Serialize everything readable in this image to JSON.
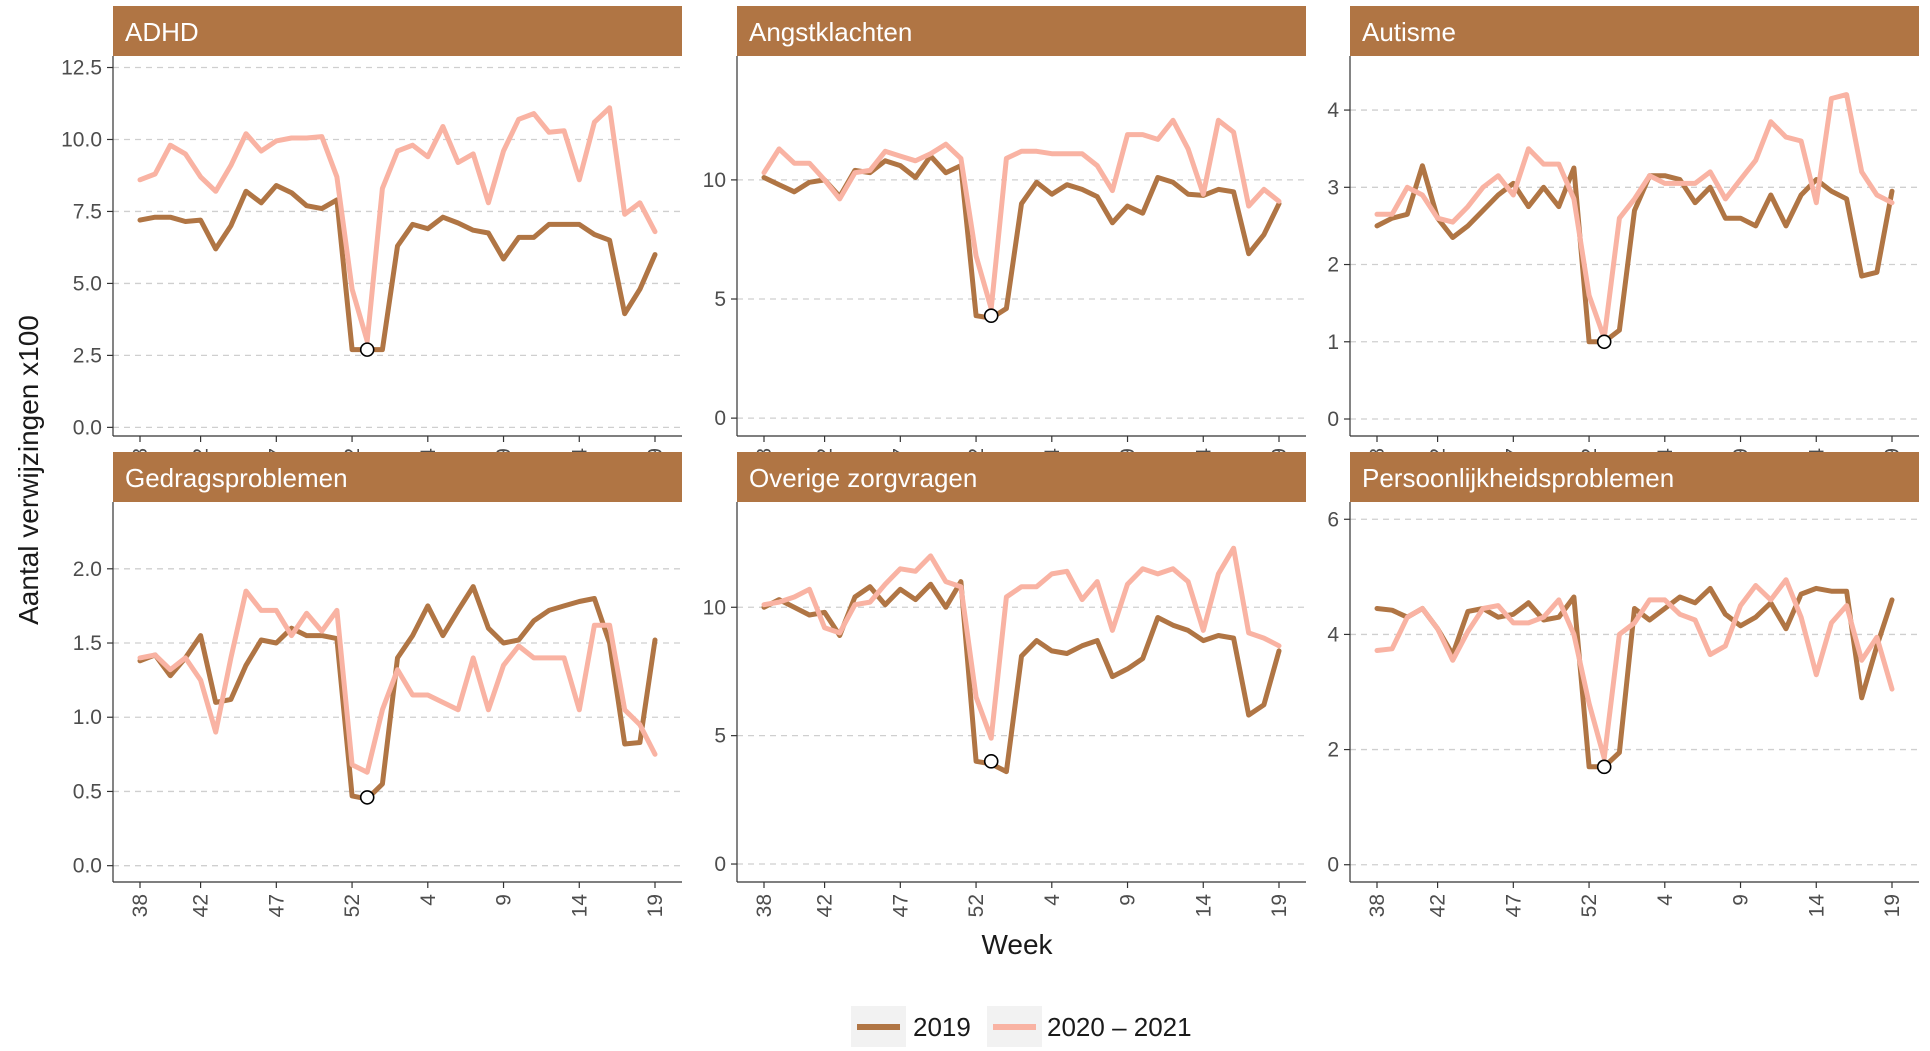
{
  "chart_data": {
    "type": "line",
    "xlabel": "Week",
    "ylabel": "Aantal verwijzingen x100",
    "x_tick_labels": [
      "38",
      "42",
      "47",
      "52",
      "4",
      "9",
      "14",
      "19"
    ],
    "x_tick_indices": [
      0,
      4,
      9,
      14,
      19,
      24,
      29,
      34
    ],
    "x_weeks": [
      "38",
      "39",
      "40",
      "41",
      "42",
      "43",
      "44",
      "45",
      "46",
      "47",
      "48",
      "49",
      "50",
      "51",
      "52",
      "53",
      "1",
      "2",
      "3",
      "4",
      "5",
      "6",
      "7",
      "8",
      "9",
      "10",
      "11",
      "12",
      "13",
      "14",
      "15",
      "16",
      "17",
      "18",
      "19"
    ],
    "grid": "horizontal-dashed",
    "legend_position": "bottom",
    "legend": [
      {
        "label": "2019",
        "color": "#b07544"
      },
      {
        "label": "2020 – 2021",
        "color": "#f9b3a3"
      }
    ],
    "facets": [
      {
        "title": "ADHD",
        "ylim": [
          -0.3,
          12.9
        ],
        "y_ticks": [
          0,
          2.5,
          5,
          7.5,
          10,
          12.5
        ],
        "y_tick_labels": [
          "0.0",
          "2.5",
          "5.0",
          "7.5",
          "10.0",
          "12.5"
        ],
        "marker": {
          "x_index": 15,
          "y": 2.7
        },
        "series": [
          {
            "values": [
              7.2,
              7.3,
              7.3,
              7.15,
              7.2,
              6.2,
              7.0,
              8.2,
              7.8,
              8.4,
              8.15,
              7.7,
              7.6,
              7.9,
              2.7,
              2.7,
              2.7,
              6.3,
              7.05,
              6.9,
              7.3,
              7.1,
              6.85,
              6.75,
              5.85,
              6.6,
              6.6,
              7.05,
              7.05,
              7.05,
              6.7,
              6.5,
              3.95,
              4.8,
              6.0
            ]
          },
          {
            "values": [
              8.6,
              8.8,
              9.8,
              9.5,
              8.7,
              8.2,
              9.1,
              10.2,
              9.6,
              9.95,
              10.05,
              10.05,
              10.1,
              8.7,
              4.8,
              3.0,
              8.3,
              9.6,
              9.8,
              9.4,
              10.45,
              9.2,
              9.5,
              7.8,
              9.6,
              10.7,
              10.9,
              10.25,
              10.3,
              8.6,
              10.6,
              11.1,
              7.4,
              7.8,
              6.8
            ]
          }
        ]
      },
      {
        "title": "Angstklachten",
        "ylim": [
          -0.75,
          15.2
        ],
        "y_ticks": [
          0,
          5,
          10
        ],
        "y_tick_labels": [
          "0",
          "5",
          "10"
        ],
        "marker": {
          "x_index": 15,
          "y": 4.3
        },
        "series": [
          {
            "values": [
              10.1,
              9.8,
              9.5,
              9.9,
              10.0,
              9.3,
              10.4,
              10.3,
              10.8,
              10.6,
              10.1,
              11.0,
              10.3,
              10.6,
              4.3,
              4.2,
              4.6,
              9.0,
              9.9,
              9.4,
              9.8,
              9.6,
              9.3,
              8.2,
              8.9,
              8.6,
              10.1,
              9.9,
              9.4,
              9.35,
              9.6,
              9.5,
              6.9,
              7.7,
              9.0
            ]
          },
          {
            "values": [
              10.3,
              11.3,
              10.7,
              10.7,
              10.0,
              9.2,
              10.3,
              10.4,
              11.2,
              11.0,
              10.8,
              11.1,
              11.5,
              10.9,
              6.8,
              4.6,
              10.9,
              11.2,
              11.2,
              11.1,
              11.1,
              11.1,
              10.6,
              9.55,
              11.9,
              11.9,
              11.7,
              12.5,
              11.3,
              9.4,
              12.5,
              12.0,
              8.9,
              9.6,
              9.1
            ]
          }
        ]
      },
      {
        "title": "Autisme",
        "ylim": [
          -0.22,
          4.7
        ],
        "y_ticks": [
          0,
          1,
          2,
          3,
          4
        ],
        "y_tick_labels": [
          "0",
          "1",
          "2",
          "3",
          "4"
        ],
        "marker": {
          "x_index": 15,
          "y": 1.0
        },
        "series": [
          {
            "values": [
              2.5,
              2.6,
              2.65,
              3.28,
              2.6,
              2.35,
              2.5,
              2.7,
              2.9,
              3.05,
              2.75,
              3.0,
              2.75,
              3.25,
              1.0,
              1.0,
              1.15,
              2.7,
              3.15,
              3.15,
              3.1,
              2.8,
              3.0,
              2.6,
              2.6,
              2.5,
              2.9,
              2.5,
              2.9,
              3.1,
              2.95,
              2.85,
              1.85,
              1.9,
              2.95
            ]
          },
          {
            "values": [
              2.65,
              2.65,
              3.0,
              2.9,
              2.6,
              2.55,
              2.75,
              3.0,
              3.15,
              2.9,
              3.5,
              3.3,
              3.3,
              2.85,
              1.6,
              1.05,
              2.6,
              2.85,
              3.15,
              3.05,
              3.05,
              3.05,
              3.2,
              2.85,
              3.1,
              3.35,
              3.85,
              3.65,
              3.6,
              2.8,
              4.15,
              4.2,
              3.2,
              2.9,
              2.8
            ]
          }
        ]
      },
      {
        "title": "Gedragsproblemen",
        "ylim": [
          -0.11,
          2.45
        ],
        "y_ticks": [
          0,
          0.5,
          1,
          1.5,
          2
        ],
        "y_tick_labels": [
          "0.0",
          "0.5",
          "1.0",
          "1.5",
          "2.0"
        ],
        "marker": {
          "x_index": 15,
          "y": 0.46
        },
        "series": [
          {
            "values": [
              1.38,
              1.42,
              1.28,
              1.4,
              1.55,
              1.1,
              1.12,
              1.35,
              1.52,
              1.5,
              1.6,
              1.55,
              1.55,
              1.53,
              0.47,
              0.45,
              0.55,
              1.4,
              1.55,
              1.75,
              1.55,
              1.72,
              1.88,
              1.6,
              1.5,
              1.52,
              1.65,
              1.72,
              1.75,
              1.78,
              1.8,
              1.5,
              0.82,
              0.83,
              1.52
            ]
          },
          {
            "values": [
              1.4,
              1.42,
              1.32,
              1.4,
              1.25,
              0.9,
              1.4,
              1.85,
              1.72,
              1.72,
              1.55,
              1.7,
              1.58,
              1.72,
              0.68,
              0.63,
              1.05,
              1.32,
              1.15,
              1.15,
              1.1,
              1.05,
              1.4,
              1.05,
              1.35,
              1.48,
              1.4,
              1.4,
              1.4,
              1.05,
              1.62,
              1.62,
              1.05,
              0.95,
              0.75
            ]
          }
        ]
      },
      {
        "title": "Overige zorgvragen",
        "ylim": [
          -0.7,
          14.1
        ],
        "y_ticks": [
          0,
          5,
          10
        ],
        "y_tick_labels": [
          "0",
          "5",
          "10"
        ],
        "marker": {
          "x_index": 15,
          "y": 4.0
        },
        "series": [
          {
            "values": [
              10.0,
              10.3,
              10.0,
              9.7,
              9.8,
              8.9,
              10.4,
              10.8,
              10.1,
              10.7,
              10.3,
              10.9,
              10.0,
              11.0,
              4.0,
              3.9,
              3.6,
              8.1,
              8.7,
              8.3,
              8.2,
              8.5,
              8.7,
              7.3,
              7.6,
              8.0,
              9.6,
              9.3,
              9.1,
              8.7,
              8.9,
              8.8,
              5.8,
              6.2,
              8.3
            ]
          },
          {
            "values": [
              10.1,
              10.2,
              10.4,
              10.7,
              9.2,
              9.0,
              10.1,
              10.2,
              10.9,
              11.5,
              11.4,
              12.0,
              11.0,
              10.8,
              6.5,
              4.9,
              10.4,
              10.8,
              10.8,
              11.3,
              11.4,
              10.3,
              11.0,
              9.1,
              10.9,
              11.5,
              11.3,
              11.5,
              11.0,
              9.1,
              11.3,
              12.3,
              9.0,
              8.8,
              8.5
            ]
          }
        ]
      },
      {
        "title": "Persoonlijkheidsproblemen",
        "ylim": [
          -0.3,
          6.3
        ],
        "y_ticks": [
          0,
          2,
          4,
          6
        ],
        "y_tick_labels": [
          "0",
          "2",
          "4",
          "6"
        ],
        "marker": {
          "x_index": 15,
          "y": 1.7
        },
        "series": [
          {
            "values": [
              4.45,
              4.42,
              4.3,
              4.45,
              4.1,
              3.65,
              4.4,
              4.45,
              4.3,
              4.35,
              4.55,
              4.25,
              4.3,
              4.65,
              1.7,
              1.7,
              1.95,
              4.45,
              4.25,
              4.45,
              4.65,
              4.55,
              4.8,
              4.35,
              4.15,
              4.3,
              4.55,
              4.1,
              4.7,
              4.8,
              4.75,
              4.75,
              2.9,
              3.8,
              4.6
            ]
          },
          {
            "values": [
              3.72,
              3.75,
              4.3,
              4.45,
              4.1,
              3.55,
              4.05,
              4.45,
              4.5,
              4.2,
              4.2,
              4.3,
              4.6,
              4.0,
              2.8,
              1.85,
              4.0,
              4.2,
              4.6,
              4.6,
              4.35,
              4.25,
              3.65,
              3.8,
              4.5,
              4.85,
              4.6,
              4.95,
              4.3,
              3.3,
              4.2,
              4.5,
              3.55,
              3.95,
              3.05
            ]
          }
        ]
      }
    ]
  }
}
